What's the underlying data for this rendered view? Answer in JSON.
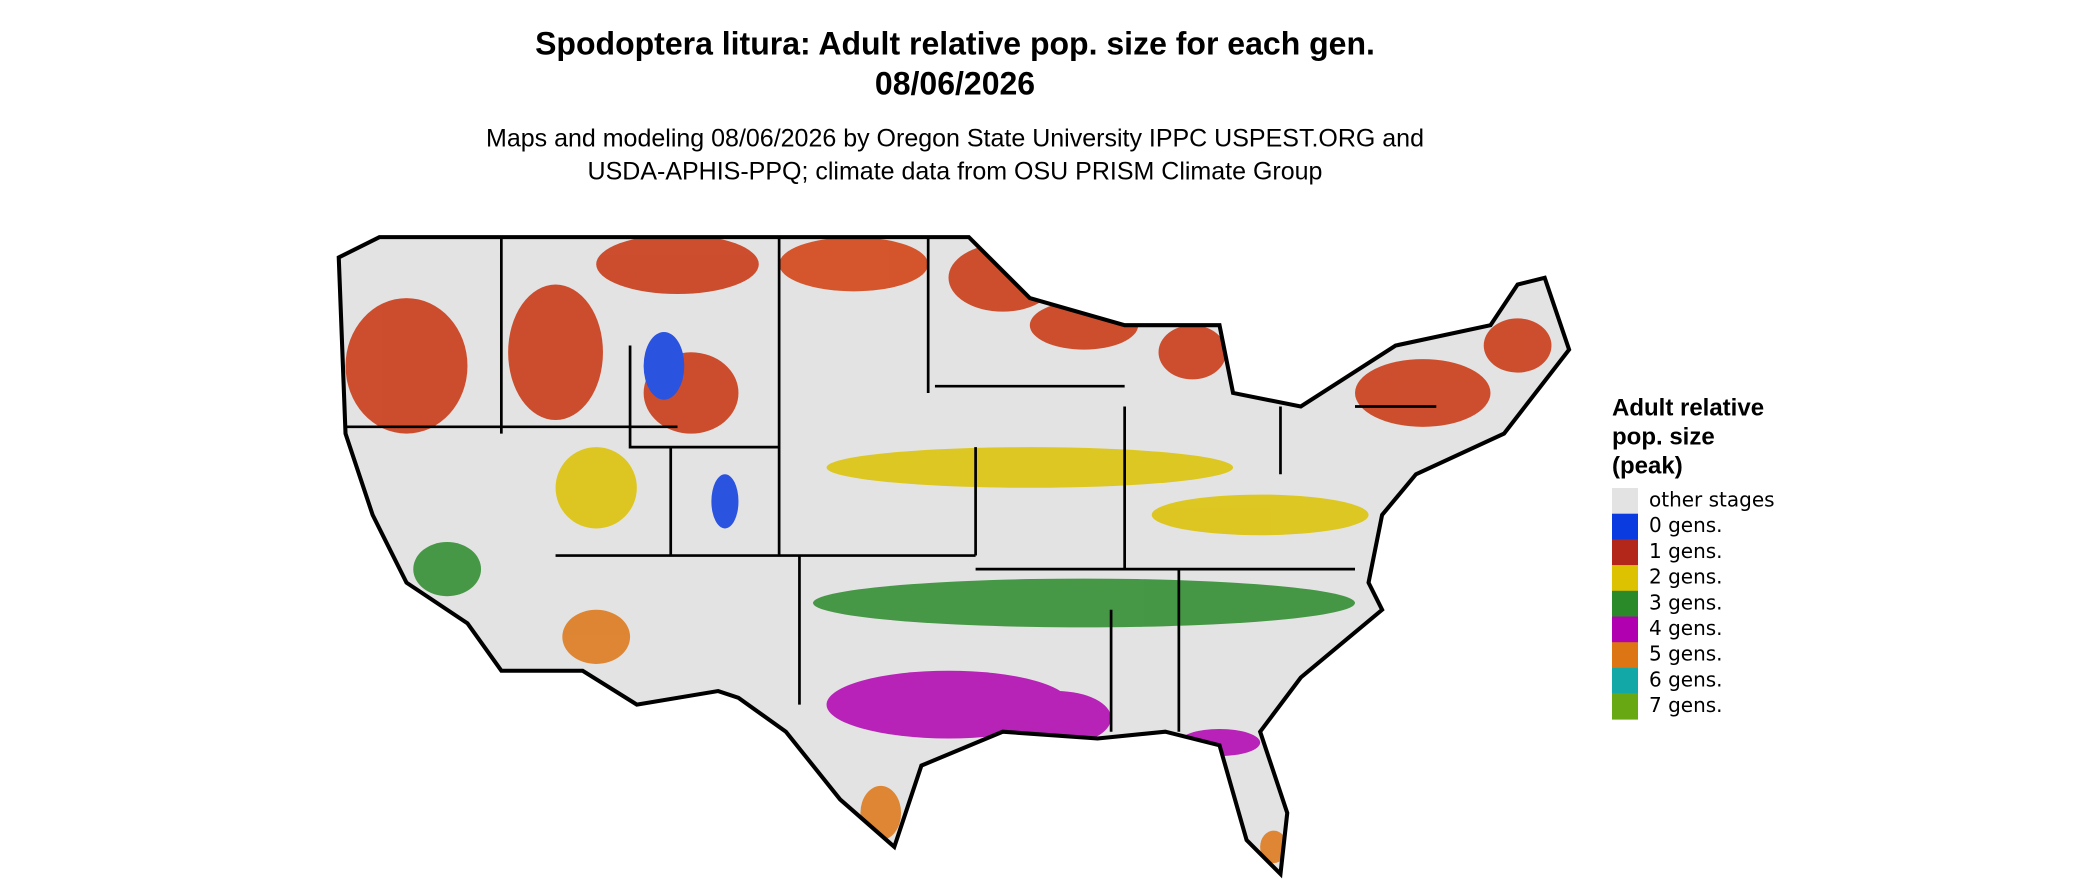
{
  "header": {
    "title_line1": "Spodoptera litura: Adult relative pop. size for each gen.",
    "title_line2": "08/06/2026",
    "subtitle_line1": "Maps and modeling 08/06/2026 by Oregon State University IPPC USPEST.ORG and",
    "subtitle_line2": "USDA-APHIS-PPQ; climate data from OSU PRISM Climate Group"
  },
  "legend": {
    "title_lines": [
      "Adult relative",
      "pop. size",
      "(peak)"
    ],
    "items": [
      {
        "label": "other stages",
        "color": "#e3e3e3"
      },
      {
        "label": "0 gens.",
        "color": "#0a3be0"
      },
      {
        "label": "1 gens.",
        "color": "#b3261a"
      },
      {
        "label": "2 gens.",
        "color": "#dcc200"
      },
      {
        "label": "3 gens.",
        "color": "#2a8a2a"
      },
      {
        "label": "4 gens.",
        "color": "#b000b0"
      },
      {
        "label": "5 gens.",
        "color": "#dd7514"
      },
      {
        "label": "6 gens.",
        "color": "#12a8a8"
      },
      {
        "label": "7 gens.",
        "color": "#68a812"
      }
    ]
  }
}
